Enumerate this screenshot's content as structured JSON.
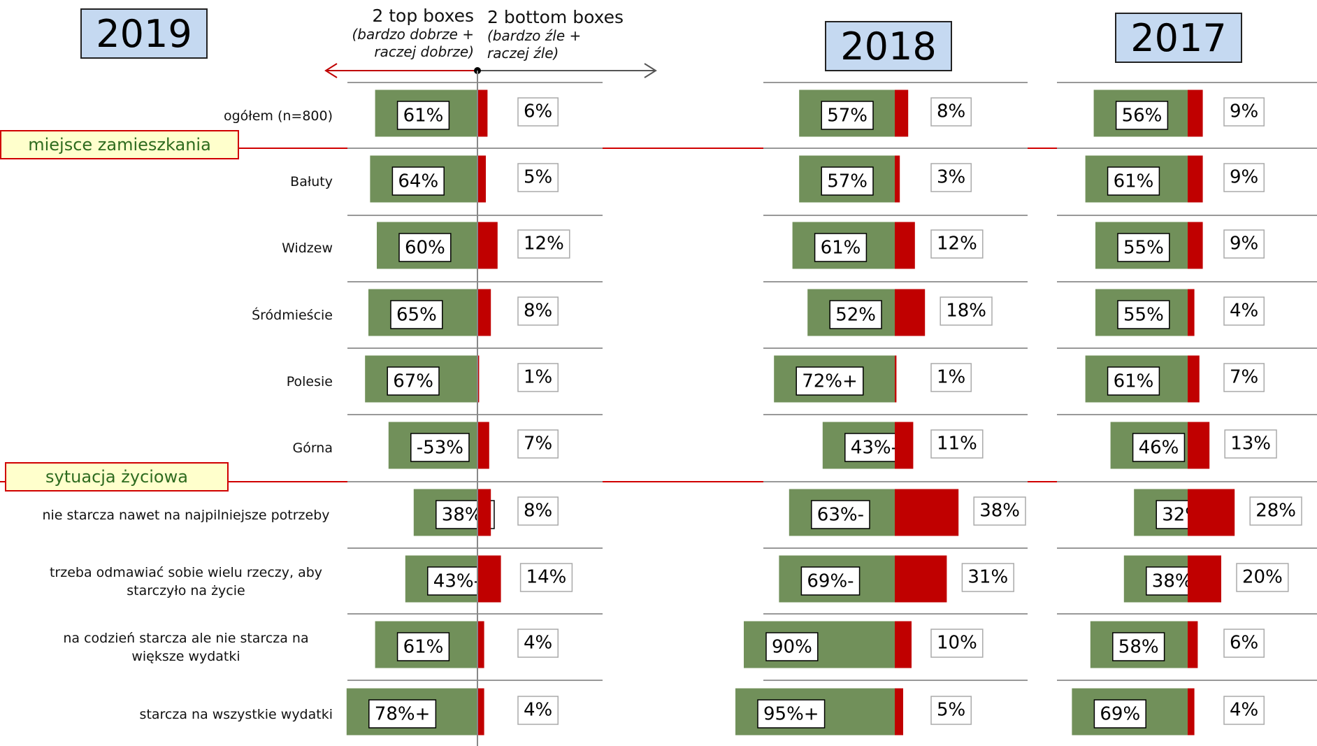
{
  "legend": {
    "top": "2 top boxes",
    "top_note": "(bardzo dobrze + raczej dobrze)",
    "bottom": "2 bottom boxes",
    "bottom_note": "(bardzo źle + raczej źle)"
  },
  "categories": [
    "ogółem (n=800)",
    "Bałuty",
    "Widzew",
    "Śródmieście",
    "Polesie",
    "Górna",
    "nie starcza nawet na najpilniejsze potrzeby",
    "trzeba odmawiać sobie wielu rzeczy, aby starczyło na życie",
    "na codzień starcza ale nie starcza na większe wydatki",
    "starcza na wszystkie wydatki"
  ],
  "groups": [
    "miejsce zamieszkania",
    "sytuacja życiowa"
  ],
  "chart_data": [
    {
      "type": "bar",
      "title": "2019",
      "series": [
        {
          "color": "#71905a",
          "values": [
            61,
            64,
            60,
            65,
            67,
            53,
            38,
            43,
            61,
            78
          ],
          "value_labels": [
            "61%",
            "64%",
            "60%",
            "65%",
            "67%",
            "-53%",
            "38%-",
            "43%-",
            "61%",
            "78%+"
          ]
        },
        {
          "color": "#c00000",
          "values": [
            6,
            5,
            12,
            8,
            1,
            7,
            8,
            14,
            4,
            4
          ],
          "value_labels": [
            "6%",
            "5%",
            "12%",
            "8%",
            "1%",
            "7%",
            "8%",
            "14%",
            "4%",
            "4%"
          ]
        }
      ]
    },
    {
      "type": "bar",
      "title": "2018",
      "series": [
        {
          "color": "#71905a",
          "values": [
            57,
            57,
            61,
            52,
            72,
            43,
            63,
            69,
            90,
            95
          ],
          "value_labels": [
            "57%",
            "57%",
            "61%",
            "52%",
            "72%+",
            "43%-",
            "63%-",
            "69%-",
            "90%",
            "95%+"
          ]
        },
        {
          "color": "#c00000",
          "values": [
            8,
            3,
            12,
            18,
            1,
            11,
            38,
            31,
            10,
            5
          ],
          "value_labels": [
            "8%",
            "3%",
            "12%",
            "18%",
            "1%",
            "11%",
            "38%",
            "31%",
            "10%",
            "5%"
          ]
        }
      ]
    },
    {
      "type": "bar",
      "title": "2017",
      "series": [
        {
          "color": "#71905a",
          "values": [
            56,
            61,
            55,
            55,
            61,
            46,
            32,
            38,
            58,
            69
          ],
          "value_labels": [
            "56%",
            "61%",
            "55%",
            "55%",
            "61%",
            "46%",
            "32%",
            "38%",
            "58%",
            "69%"
          ]
        },
        {
          "color": "#c00000",
          "values": [
            9,
            9,
            9,
            4,
            7,
            13,
            28,
            20,
            6,
            4
          ],
          "value_labels": [
            "9%",
            "9%",
            "9%",
            "4%",
            "7%",
            "13%",
            "28%",
            "20%",
            "6%",
            "4%"
          ]
        }
      ]
    }
  ]
}
